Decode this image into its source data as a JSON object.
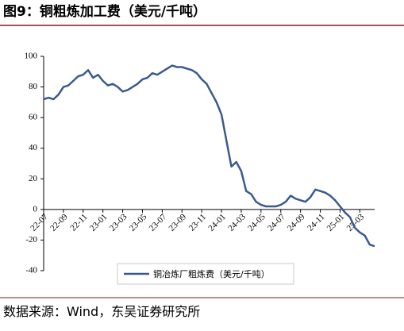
{
  "chart_data": {
    "type": "line",
    "title": "图9：铜粗炼加工费（美元/千吨）",
    "source": "数据来源：Wind，东吴证券研究所",
    "categories": [
      "22-07",
      null,
      null,
      null,
      "22-09",
      null,
      null,
      null,
      "22-11",
      null,
      null,
      null,
      "23-01",
      null,
      null,
      null,
      "23-03",
      null,
      null,
      null,
      "23-05",
      null,
      null,
      null,
      "23-07",
      null,
      null,
      null,
      "23-09",
      null,
      null,
      null,
      "23-11",
      null,
      null,
      null,
      "24-01",
      null,
      null,
      null,
      "24-03",
      null,
      null,
      null,
      "24-05",
      null,
      null,
      null,
      "24-07",
      null,
      null,
      null,
      "24-09",
      null,
      null,
      null,
      "24-11",
      null,
      null,
      null,
      "25-01",
      null,
      null,
      null,
      "25-03",
      null,
      null,
      null
    ],
    "series": [
      {
        "name": "铜冶炼厂粗炼费（美元/千吨）",
        "color": "#3a5a8f",
        "values": [
          72,
          73,
          72,
          75,
          80,
          81,
          84,
          87,
          88,
          91,
          86,
          88,
          84,
          81,
          82,
          80,
          77,
          78,
          80,
          82,
          85,
          86,
          89,
          88,
          90,
          92,
          94,
          93,
          93,
          92,
          91,
          89,
          85,
          82,
          76,
          70,
          62,
          45,
          28,
          31,
          25,
          12,
          10,
          5,
          3,
          2,
          2,
          2,
          3,
          5,
          9,
          7,
          6,
          5,
          8,
          13,
          12,
          11,
          9,
          6,
          2,
          -2,
          -5,
          -12,
          -15,
          -17,
          -23,
          -24
        ]
      }
    ],
    "ylim": [
      -40,
      100
    ],
    "yticks": [
      -40,
      -20,
      0,
      20,
      40,
      60,
      80,
      100
    ]
  }
}
